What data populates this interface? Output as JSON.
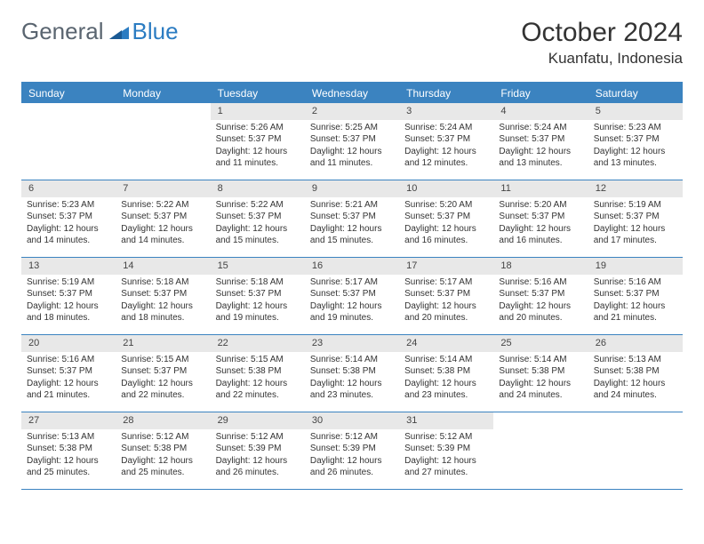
{
  "logo": {
    "part1": "General",
    "part2": "Blue"
  },
  "title": "October 2024",
  "location": "Kuanfatu, Indonesia",
  "colors": {
    "header_bg": "#3b83c0",
    "header_text": "#ffffff",
    "daynum_bg": "#e8e8e8",
    "border": "#3b83c0",
    "logo_gray": "#5a6570",
    "logo_blue": "#2b7cc2"
  },
  "day_names": [
    "Sunday",
    "Monday",
    "Tuesday",
    "Wednesday",
    "Thursday",
    "Friday",
    "Saturday"
  ],
  "weeks": [
    [
      null,
      null,
      {
        "n": "1",
        "sr": "Sunrise: 5:26 AM",
        "ss": "Sunset: 5:37 PM",
        "d1": "Daylight: 12 hours",
        "d2": "and 11 minutes."
      },
      {
        "n": "2",
        "sr": "Sunrise: 5:25 AM",
        "ss": "Sunset: 5:37 PM",
        "d1": "Daylight: 12 hours",
        "d2": "and 11 minutes."
      },
      {
        "n": "3",
        "sr": "Sunrise: 5:24 AM",
        "ss": "Sunset: 5:37 PM",
        "d1": "Daylight: 12 hours",
        "d2": "and 12 minutes."
      },
      {
        "n": "4",
        "sr": "Sunrise: 5:24 AM",
        "ss": "Sunset: 5:37 PM",
        "d1": "Daylight: 12 hours",
        "d2": "and 13 minutes."
      },
      {
        "n": "5",
        "sr": "Sunrise: 5:23 AM",
        "ss": "Sunset: 5:37 PM",
        "d1": "Daylight: 12 hours",
        "d2": "and 13 minutes."
      }
    ],
    [
      {
        "n": "6",
        "sr": "Sunrise: 5:23 AM",
        "ss": "Sunset: 5:37 PM",
        "d1": "Daylight: 12 hours",
        "d2": "and 14 minutes."
      },
      {
        "n": "7",
        "sr": "Sunrise: 5:22 AM",
        "ss": "Sunset: 5:37 PM",
        "d1": "Daylight: 12 hours",
        "d2": "and 14 minutes."
      },
      {
        "n": "8",
        "sr": "Sunrise: 5:22 AM",
        "ss": "Sunset: 5:37 PM",
        "d1": "Daylight: 12 hours",
        "d2": "and 15 minutes."
      },
      {
        "n": "9",
        "sr": "Sunrise: 5:21 AM",
        "ss": "Sunset: 5:37 PM",
        "d1": "Daylight: 12 hours",
        "d2": "and 15 minutes."
      },
      {
        "n": "10",
        "sr": "Sunrise: 5:20 AM",
        "ss": "Sunset: 5:37 PM",
        "d1": "Daylight: 12 hours",
        "d2": "and 16 minutes."
      },
      {
        "n": "11",
        "sr": "Sunrise: 5:20 AM",
        "ss": "Sunset: 5:37 PM",
        "d1": "Daylight: 12 hours",
        "d2": "and 16 minutes."
      },
      {
        "n": "12",
        "sr": "Sunrise: 5:19 AM",
        "ss": "Sunset: 5:37 PM",
        "d1": "Daylight: 12 hours",
        "d2": "and 17 minutes."
      }
    ],
    [
      {
        "n": "13",
        "sr": "Sunrise: 5:19 AM",
        "ss": "Sunset: 5:37 PM",
        "d1": "Daylight: 12 hours",
        "d2": "and 18 minutes."
      },
      {
        "n": "14",
        "sr": "Sunrise: 5:18 AM",
        "ss": "Sunset: 5:37 PM",
        "d1": "Daylight: 12 hours",
        "d2": "and 18 minutes."
      },
      {
        "n": "15",
        "sr": "Sunrise: 5:18 AM",
        "ss": "Sunset: 5:37 PM",
        "d1": "Daylight: 12 hours",
        "d2": "and 19 minutes."
      },
      {
        "n": "16",
        "sr": "Sunrise: 5:17 AM",
        "ss": "Sunset: 5:37 PM",
        "d1": "Daylight: 12 hours",
        "d2": "and 19 minutes."
      },
      {
        "n": "17",
        "sr": "Sunrise: 5:17 AM",
        "ss": "Sunset: 5:37 PM",
        "d1": "Daylight: 12 hours",
        "d2": "and 20 minutes."
      },
      {
        "n": "18",
        "sr": "Sunrise: 5:16 AM",
        "ss": "Sunset: 5:37 PM",
        "d1": "Daylight: 12 hours",
        "d2": "and 20 minutes."
      },
      {
        "n": "19",
        "sr": "Sunrise: 5:16 AM",
        "ss": "Sunset: 5:37 PM",
        "d1": "Daylight: 12 hours",
        "d2": "and 21 minutes."
      }
    ],
    [
      {
        "n": "20",
        "sr": "Sunrise: 5:16 AM",
        "ss": "Sunset: 5:37 PM",
        "d1": "Daylight: 12 hours",
        "d2": "and 21 minutes."
      },
      {
        "n": "21",
        "sr": "Sunrise: 5:15 AM",
        "ss": "Sunset: 5:37 PM",
        "d1": "Daylight: 12 hours",
        "d2": "and 22 minutes."
      },
      {
        "n": "22",
        "sr": "Sunrise: 5:15 AM",
        "ss": "Sunset: 5:38 PM",
        "d1": "Daylight: 12 hours",
        "d2": "and 22 minutes."
      },
      {
        "n": "23",
        "sr": "Sunrise: 5:14 AM",
        "ss": "Sunset: 5:38 PM",
        "d1": "Daylight: 12 hours",
        "d2": "and 23 minutes."
      },
      {
        "n": "24",
        "sr": "Sunrise: 5:14 AM",
        "ss": "Sunset: 5:38 PM",
        "d1": "Daylight: 12 hours",
        "d2": "and 23 minutes."
      },
      {
        "n": "25",
        "sr": "Sunrise: 5:14 AM",
        "ss": "Sunset: 5:38 PM",
        "d1": "Daylight: 12 hours",
        "d2": "and 24 minutes."
      },
      {
        "n": "26",
        "sr": "Sunrise: 5:13 AM",
        "ss": "Sunset: 5:38 PM",
        "d1": "Daylight: 12 hours",
        "d2": "and 24 minutes."
      }
    ],
    [
      {
        "n": "27",
        "sr": "Sunrise: 5:13 AM",
        "ss": "Sunset: 5:38 PM",
        "d1": "Daylight: 12 hours",
        "d2": "and 25 minutes."
      },
      {
        "n": "28",
        "sr": "Sunrise: 5:12 AM",
        "ss": "Sunset: 5:38 PM",
        "d1": "Daylight: 12 hours",
        "d2": "and 25 minutes."
      },
      {
        "n": "29",
        "sr": "Sunrise: 5:12 AM",
        "ss": "Sunset: 5:39 PM",
        "d1": "Daylight: 12 hours",
        "d2": "and 26 minutes."
      },
      {
        "n": "30",
        "sr": "Sunrise: 5:12 AM",
        "ss": "Sunset: 5:39 PM",
        "d1": "Daylight: 12 hours",
        "d2": "and 26 minutes."
      },
      {
        "n": "31",
        "sr": "Sunrise: 5:12 AM",
        "ss": "Sunset: 5:39 PM",
        "d1": "Daylight: 12 hours",
        "d2": "and 27 minutes."
      },
      null,
      null
    ]
  ]
}
